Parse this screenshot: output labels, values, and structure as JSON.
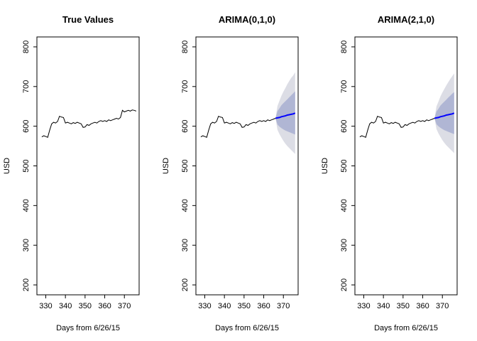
{
  "figure": {
    "ylabel": "USD",
    "xlabel": "Days from 6/26/15"
  },
  "chart_data": [
    {
      "type": "line",
      "title": "True Values",
      "xlabel": "Days from 6/26/15",
      "ylabel": "USD",
      "xlim": [
        325.5,
        377.5
      ],
      "ylim": [
        175,
        825
      ],
      "xticks": [
        330,
        340,
        350,
        360,
        370
      ],
      "yticks": [
        200,
        300,
        400,
        500,
        600,
        700,
        800
      ],
      "series": [
        {
          "color": "#000000",
          "x": [
            328,
            329,
            330,
            331,
            332,
            333,
            334,
            335,
            336,
            337,
            338,
            339,
            340,
            341,
            342,
            343,
            344,
            345,
            346,
            347,
            348,
            349,
            350,
            351,
            352,
            353,
            354,
            355,
            356,
            357,
            358,
            359,
            360,
            361,
            362,
            363,
            364,
            365,
            366,
            367,
            368,
            369,
            370,
            371,
            372,
            373,
            374,
            375,
            376
          ],
          "y": [
            573,
            576,
            574,
            572,
            590,
            606,
            610,
            608,
            612,
            625,
            623,
            622,
            608,
            610,
            608,
            606,
            609,
            607,
            610,
            608,
            606,
            597,
            598,
            604,
            602,
            606,
            608,
            610,
            608,
            612,
            614,
            612,
            614,
            612,
            616,
            614,
            616,
            618,
            620,
            618,
            622,
            640,
            636,
            638,
            640,
            638,
            641,
            640,
            638
          ]
        }
      ]
    },
    {
      "type": "line",
      "title": "ARIMA(0,1,0)",
      "xlabel": "Days from 6/26/15",
      "ylabel": "USD",
      "xlim": [
        325.5,
        377.5
      ],
      "ylim": [
        175,
        825
      ],
      "xticks": [
        330,
        340,
        350,
        360,
        370
      ],
      "yticks": [
        200,
        300,
        400,
        500,
        600,
        700,
        800
      ],
      "series": [
        {
          "color": "#000000",
          "x": [
            328,
            329,
            330,
            331,
            332,
            333,
            334,
            335,
            336,
            337,
            338,
            339,
            340,
            341,
            342,
            343,
            344,
            345,
            346,
            347,
            348,
            349,
            350,
            351,
            352,
            353,
            354,
            355,
            356,
            357,
            358,
            359,
            360,
            361,
            362,
            363,
            364,
            365,
            366
          ],
          "y": [
            573,
            576,
            574,
            572,
            590,
            606,
            610,
            608,
            612,
            625,
            623,
            622,
            608,
            610,
            608,
            606,
            609,
            607,
            610,
            608,
            606,
            597,
            598,
            604,
            602,
            606,
            608,
            610,
            608,
            612,
            614,
            612,
            614,
            612,
            616,
            614,
            616,
            618,
            620
          ]
        }
      ],
      "forecast": {
        "color": "#0000ff",
        "x": [
          366,
          367,
          368,
          369,
          370,
          371,
          372,
          373,
          374,
          375,
          376
        ],
        "mean": [
          620,
          621,
          622,
          624,
          625,
          626,
          628,
          629,
          630,
          631,
          633
        ],
        "lower80": [
          620,
          604,
          599,
          595,
          592,
          589,
          587,
          585,
          583,
          581,
          579
        ],
        "upper80": [
          620,
          638,
          645,
          653,
          658,
          663,
          668,
          673,
          678,
          683,
          688
        ],
        "lower95": [
          620,
          591,
          580,
          571,
          563,
          556,
          550,
          545,
          540,
          535,
          530
        ],
        "upper95": [
          620,
          651,
          664,
          677,
          687,
          696,
          706,
          714,
          722,
          728,
          736
        ]
      }
    },
    {
      "type": "line",
      "title": "ARIMA(2,1,0)",
      "xlabel": "Days from 6/26/15",
      "ylabel": "USD",
      "xlim": [
        325.5,
        377.5
      ],
      "ylim": [
        175,
        825
      ],
      "xticks": [
        330,
        340,
        350,
        360,
        370
      ],
      "yticks": [
        200,
        300,
        400,
        500,
        600,
        700,
        800
      ],
      "series": [
        {
          "color": "#000000",
          "x": [
            328,
            329,
            330,
            331,
            332,
            333,
            334,
            335,
            336,
            337,
            338,
            339,
            340,
            341,
            342,
            343,
            344,
            345,
            346,
            347,
            348,
            349,
            350,
            351,
            352,
            353,
            354,
            355,
            356,
            357,
            358,
            359,
            360,
            361,
            362,
            363,
            364,
            365,
            366
          ],
          "y": [
            573,
            576,
            574,
            572,
            590,
            606,
            610,
            608,
            612,
            625,
            623,
            622,
            608,
            610,
            608,
            606,
            609,
            607,
            610,
            608,
            606,
            597,
            598,
            604,
            602,
            606,
            608,
            610,
            608,
            612,
            614,
            612,
            614,
            612,
            616,
            614,
            616,
            618,
            620
          ]
        }
      ],
      "forecast": {
        "color": "#0000ff",
        "x": [
          366,
          367,
          368,
          369,
          370,
          371,
          372,
          373,
          374,
          375,
          376
        ],
        "mean": [
          620,
          621,
          622,
          624,
          625,
          626,
          628,
          629,
          630,
          631,
          633
        ],
        "lower80": [
          620,
          605,
          600,
          596,
          593,
          590,
          588,
          586,
          584,
          582,
          580
        ],
        "upper80": [
          620,
          637,
          644,
          652,
          657,
          662,
          667,
          672,
          677,
          682,
          686
        ],
        "lower95": [
          620,
          593,
          582,
          573,
          565,
          558,
          552,
          547,
          542,
          537,
          532
        ],
        "upper95": [
          620,
          650,
          662,
          675,
          685,
          694,
          703,
          711,
          719,
          726,
          733
        ]
      }
    }
  ],
  "colors": {
    "band95": "#dcdde5",
    "band80": "#b0b6d4"
  }
}
